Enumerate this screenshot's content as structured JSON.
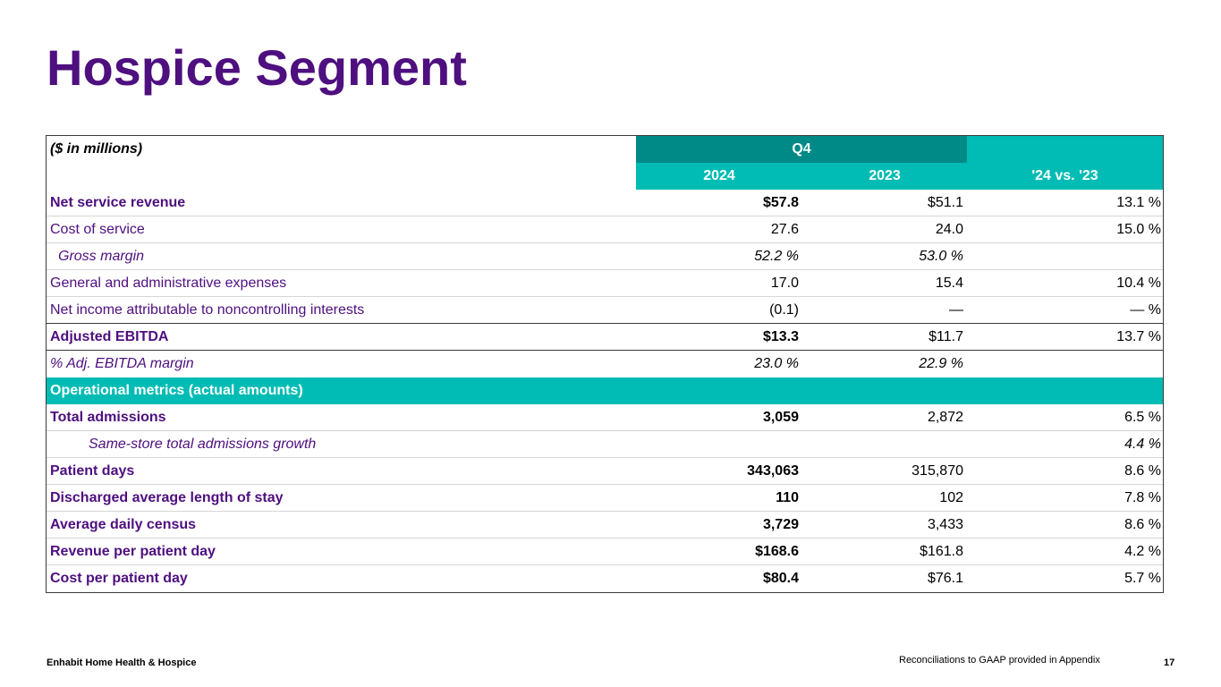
{
  "title": "Hospice Segment",
  "table": {
    "units_label": "($ in millions)",
    "period_label": "Q4",
    "col_2024": "2024",
    "col_2023": "2023",
    "col_change": "'24 vs. '23",
    "rows_top": [
      {
        "label": "Net service revenue",
        "v2024": "$57.8",
        "v2023": "$51.1",
        "change": "13.1 %"
      },
      {
        "label": "Cost of service",
        "v2024": "27.6",
        "v2023": "24.0",
        "change": "15.0 %"
      },
      {
        "label": "Gross margin",
        "v2024": "52.2 %",
        "v2023": "53.0 %",
        "change": ""
      },
      {
        "label": "General and administrative expenses",
        "v2024": "17.0",
        "v2023": "15.4",
        "change": "10.4 %"
      },
      {
        "label": "Net income attributable to noncontrolling interests",
        "v2024": "(0.1)",
        "v2023": "—",
        "change": "— %"
      },
      {
        "label": "Adjusted EBITDA",
        "v2024": "$13.3",
        "v2023": "$11.7",
        "change": "13.7 %"
      },
      {
        "label": "% Adj. EBITDA margin",
        "v2024": "23.0 %",
        "v2023": "22.9 %",
        "change": ""
      }
    ],
    "section_label": "Operational metrics (actual amounts)",
    "rows_ops": [
      {
        "label": "Total admissions",
        "v2024": "3,059",
        "v2023": "2,872",
        "change": "6.5 %"
      },
      {
        "label": "Same-store total admissions growth",
        "v2024": "",
        "v2023": "",
        "change": "4.4 %"
      },
      {
        "label": "Patient days",
        "v2024": "343,063",
        "v2023": "315,870",
        "change": "8.6 %"
      },
      {
        "label": "Discharged average length of stay",
        "v2024": "110",
        "v2023": "102",
        "change": "7.8 %"
      },
      {
        "label": "Average daily census",
        "v2024": "3,729",
        "v2023": "3,433",
        "change": "8.6 %"
      },
      {
        "label": "Revenue per patient day",
        "v2024": "$168.6",
        "v2023": "$161.8",
        "change": "4.2 %"
      },
      {
        "label": "Cost per patient day",
        "v2024": "$80.4",
        "v2023": "$76.1",
        "change": "5.7 %"
      }
    ]
  },
  "footer": {
    "company": "Enhabit Home Health & Hospice",
    "note": "Reconciliations to GAAP provided in Appendix",
    "page_number": "17"
  }
}
